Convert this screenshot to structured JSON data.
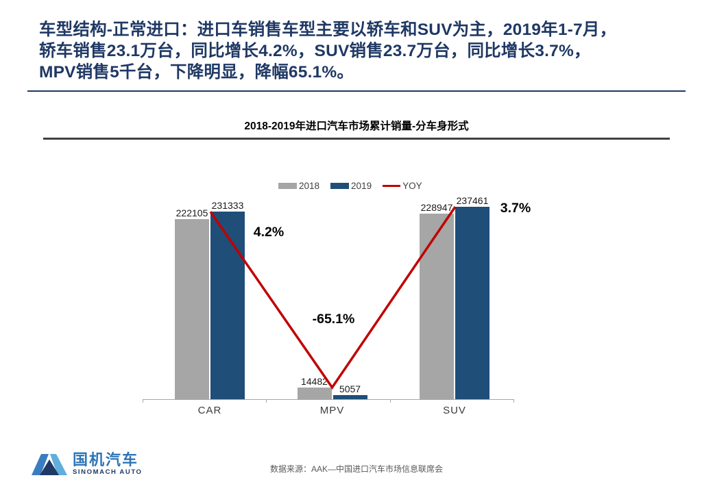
{
  "slide": {
    "title_lines": [
      "车型结构-正常进口：进口车销售车型主要以轿车和SUV为主，2019年1-7月，",
      "轿车销售23.1万台，同比增长4.2%，SUV销售23.7万台，同比增长3.7%，",
      "MPV销售5千台，下降明显，降幅65.1%。"
    ],
    "footer_source": "数据来源：AAK—中国进口汽车市场信息联席会",
    "logo": {
      "name_cn": "国机汽车",
      "name_en": "SINOMACH AUTO"
    }
  },
  "chart": {
    "title": "2018-2019年进口汽车市场累计销量-分车身形式"
  },
  "colors": {
    "headline": "#1F3864",
    "bar_2018": "#A6A6A6",
    "bar_2019": "#1F4E79",
    "yoy_line": "#C00000",
    "axis": "#A6A6A6"
  },
  "chart_data": {
    "type": "bar",
    "title": "2018-2019年进口汽车市场累计销量-分车身形式",
    "categories": [
      "CAR",
      "MPV",
      "SUV"
    ],
    "series": [
      {
        "name": "2018",
        "values": [
          222105,
          14482,
          228947
        ],
        "color": "#A6A6A6"
      },
      {
        "name": "2019",
        "values": [
          231333,
          5057,
          237461
        ],
        "color": "#1F4E79"
      }
    ],
    "line_series": {
      "name": "YOY",
      "values_percent": [
        4.2,
        -65.1,
        3.7
      ],
      "labels": [
        "4.2%",
        "-65.1%",
        "3.7%"
      ],
      "color": "#C00000"
    },
    "legend": [
      {
        "label": "2018",
        "swatch": "box",
        "color": "#A6A6A6"
      },
      {
        "label": "2019",
        "swatch": "box",
        "color": "#1F4E79"
      },
      {
        "label": "YOY",
        "swatch": "line",
        "color": "#C00000"
      }
    ],
    "value_labels": true,
    "grid": false,
    "legend_position": "top",
    "ylim": [
      0,
      250000
    ],
    "xlabel": "",
    "ylabel": ""
  }
}
